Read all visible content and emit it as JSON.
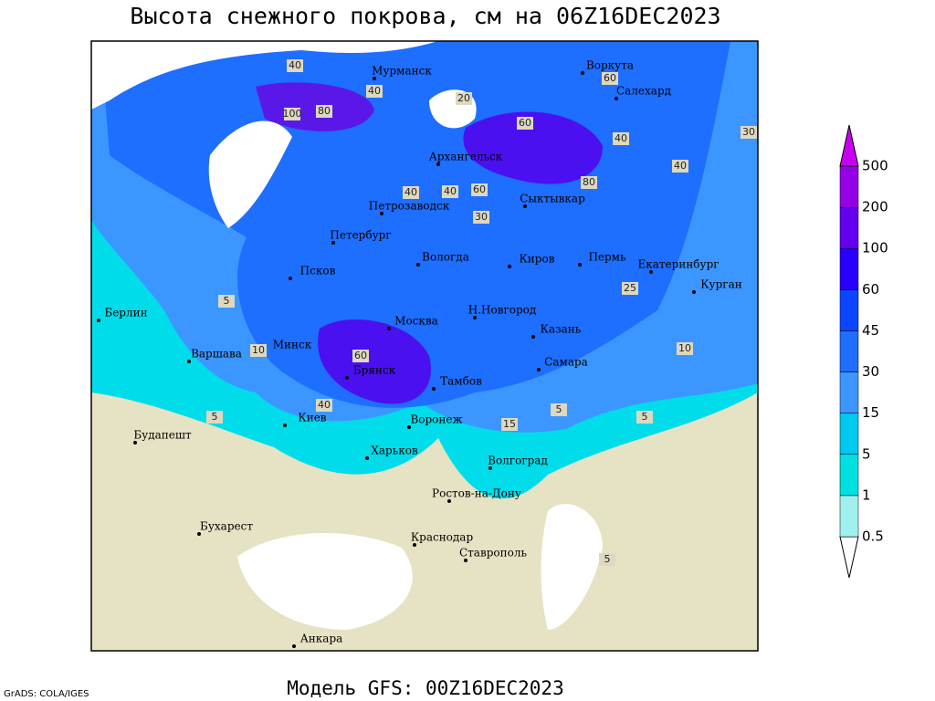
{
  "title": "Высота снежного покрова, см на 06Z16DEC2023",
  "footer": "Модель GFS: 00Z16DEC2023",
  "credit": "GrADS: COLA/IGES",
  "cities": [
    "Мурманск",
    "Воркута",
    "Салехард",
    "Архангельск",
    "Петрозаводск",
    "Сыктывкар",
    "Петербург",
    "Вологда",
    "Киров",
    "Пермь",
    "Екатеринбург",
    "Курган",
    "Псков",
    "Берлин",
    "Н.Новгород",
    "Москва",
    "Казань",
    "Варшава",
    "Минск",
    "Самара",
    "Брянск",
    "Тамбов",
    "Киев",
    "Воронеж",
    "Будапешт",
    "Харьков",
    "Волгоград",
    "Ростов-на-Дону",
    "Бухарест",
    "Краснодар",
    "Ставрополь",
    "Анкара"
  ],
  "contour_labels": [
    "40",
    "60",
    "100",
    "80",
    "40",
    "60",
    "30",
    "40",
    "80",
    "40",
    "60",
    "40",
    "30",
    "20",
    "40",
    "25",
    "10",
    "5",
    "5",
    "10",
    "5",
    "40",
    "60",
    "15",
    "5",
    "5"
  ],
  "legend": {
    "levels": [
      "0.5",
      "1",
      "5",
      "15",
      "30",
      "45",
      "60",
      "100",
      "200",
      "500"
    ],
    "colors": [
      "#ffffff",
      "#a0f0f0",
      "#00e0e0",
      "#00c8f0",
      "#3c96ff",
      "#1e6eff",
      "#0a46ff",
      "#2800ff",
      "#6400f0",
      "#9600e6",
      "#c800f0"
    ]
  }
}
